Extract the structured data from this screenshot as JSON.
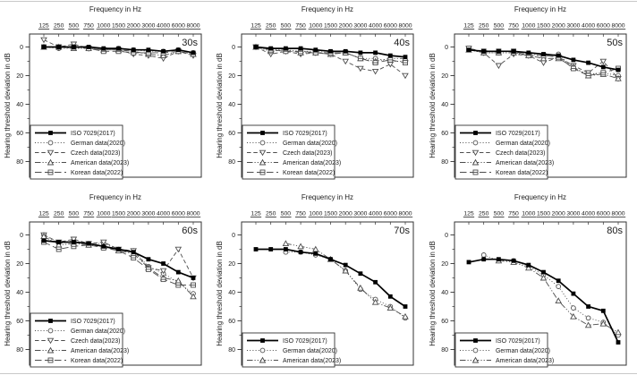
{
  "figure": {
    "background": "#ffffff",
    "edge_line_color": "#c8c8c8",
    "frame_color": "#333333",
    "iso_color": "#000000",
    "other_color": "#4d4d4d"
  },
  "series_styles": {
    "ISO 7029(2017)": {
      "marker": "square-filled",
      "linestyle": "solid",
      "color": "#000000",
      "width": 1.7
    },
    "German data(2020)": {
      "marker": "circle-open",
      "linestyle": "dotted",
      "color": "#4d4d4d",
      "width": 0.9
    },
    "Czech data(2023)": {
      "marker": "triangle-down-open",
      "linestyle": "dashed",
      "color": "#4d4d4d",
      "width": 0.9
    },
    "American data(2023)": {
      "marker": "triangle-up-open",
      "linestyle": "dashdotdot",
      "color": "#4d4d4d",
      "width": 0.9
    },
    "Korean data(2022)": {
      "marker": "square-minus-open",
      "linestyle": "longdash",
      "color": "#4d4d4d",
      "width": 0.9
    }
  },
  "chart_data": [
    {
      "type": "line",
      "age_label": "30s",
      "title": "Frequency in Hz",
      "xlabel": "Frequency in Hz",
      "ylabel": "Hearing threshold deviation in dB",
      "categories": [
        "125",
        "250",
        "500",
        "750",
        "1000",
        "1500",
        "2000",
        "3000",
        "4000",
        "6000",
        "8000"
      ],
      "ylim": [
        -9,
        91
      ],
      "yticks": [
        0,
        20,
        40,
        60,
        80
      ],
      "yminorticks": [
        10,
        30,
        50,
        70
      ],
      "y_inverted": true,
      "grid": false,
      "legend_position": "bottom-left",
      "series": [
        {
          "name": "ISO 7029(2017)",
          "values": [
            0,
            0,
            0,
            0,
            1,
            1,
            2,
            2,
            3,
            2,
            4
          ]
        },
        {
          "name": "German data(2020)",
          "values": [
            0,
            1,
            1,
            1,
            2,
            1,
            2,
            3,
            3,
            2,
            4
          ]
        },
        {
          "name": "Czech data(2023)",
          "values": [
            -5,
            0,
            -2,
            1,
            2,
            2,
            5,
            6,
            8,
            3,
            6
          ]
        },
        {
          "name": "American data(2023)",
          "values": [
            0,
            0,
            1,
            1,
            2,
            2,
            3,
            5,
            6,
            3,
            5
          ]
        },
        {
          "name": "Korean data(2022)",
          "values": [
            0,
            0,
            0,
            1,
            3,
            3,
            4,
            4,
            4,
            3,
            5
          ]
        }
      ]
    },
    {
      "type": "line",
      "age_label": "40s",
      "title": "Frequency in Hz",
      "xlabel": "Frequency in Hz",
      "ylabel": "Hearing threshold deviation in dB",
      "categories": [
        "125",
        "250",
        "500",
        "750",
        "1000",
        "1500",
        "2000",
        "3000",
        "4000",
        "6000",
        "8000"
      ],
      "ylim": [
        -9,
        91
      ],
      "yticks": [
        0,
        20,
        40,
        60,
        80
      ],
      "yminorticks": [
        10,
        30,
        50,
        70
      ],
      "y_inverted": true,
      "grid": false,
      "legend_position": "bottom-left",
      "series": [
        {
          "name": "ISO 7029(2017)",
          "values": [
            0,
            1,
            1,
            1,
            2,
            3,
            3,
            4,
            4,
            6,
            7
          ]
        },
        {
          "name": "German data(2020)",
          "values": [
            0,
            2,
            2,
            3,
            3,
            4,
            4,
            8,
            8,
            10,
            10
          ]
        },
        {
          "name": "Czech data(2023)",
          "values": [
            0,
            5,
            3,
            5,
            4,
            5,
            10,
            15,
            17,
            12,
            20
          ]
        },
        {
          "name": "American data(2023)",
          "values": [
            0,
            3,
            2,
            4,
            4,
            5,
            4,
            8,
            10,
            8,
            8
          ]
        },
        {
          "name": "Korean data(2022)",
          "values": [
            0,
            2,
            3,
            3,
            4,
            4,
            4,
            8,
            11,
            9,
            11
          ]
        }
      ]
    },
    {
      "type": "line",
      "age_label": "50s",
      "title": "Frequency in Hz",
      "xlabel": "Frequency in Hz",
      "ylabel": "Hearing threshold deviation in dB",
      "categories": [
        "125",
        "250",
        "500",
        "750",
        "1000",
        "1500",
        "2000",
        "3000",
        "4000",
        "6000",
        "8000"
      ],
      "ylim": [
        -9,
        91
      ],
      "yticks": [
        0,
        20,
        40,
        60,
        80
      ],
      "yminorticks": [
        10,
        30,
        50,
        70
      ],
      "y_inverted": true,
      "grid": false,
      "legend_position": "bottom-left",
      "series": [
        {
          "name": "ISO 7029(2017)",
          "values": [
            2,
            3,
            3,
            3,
            4,
            5,
            6,
            9,
            11,
            14,
            16
          ]
        },
        {
          "name": "German data(2020)",
          "values": [
            2,
            4,
            4,
            4,
            5,
            6,
            5,
            15,
            19,
            18,
            20
          ]
        },
        {
          "name": "Czech data(2023)",
          "values": [
            1,
            4,
            13,
            5,
            6,
            11,
            7,
            13,
            18,
            10,
            22
          ]
        },
        {
          "name": "American data(2023)",
          "values": [
            2,
            4,
            4,
            4,
            6,
            8,
            8,
            14,
            20,
            19,
            22
          ]
        },
        {
          "name": "Korean data(2022)",
          "values": [
            1,
            3,
            3,
            3,
            6,
            6,
            7,
            15,
            20,
            18,
            15
          ]
        }
      ]
    },
    {
      "type": "line",
      "age_label": "60s",
      "title": "Frequency in Hz",
      "xlabel": "Frequency in Hz",
      "ylabel": "Hearing threshold deviation in dB",
      "categories": [
        "125",
        "250",
        "500",
        "750",
        "1000",
        "1500",
        "2000",
        "3000",
        "4000",
        "6000",
        "8000"
      ],
      "ylim": [
        -9,
        91
      ],
      "yticks": [
        0,
        20,
        40,
        60,
        80
      ],
      "yminorticks": [
        10,
        30,
        50,
        70
      ],
      "y_inverted": true,
      "grid": false,
      "legend_position": "bottom-left",
      "series": [
        {
          "name": "ISO 7029(2017)",
          "values": [
            4,
            5,
            5,
            6,
            8,
            10,
            12,
            17,
            20,
            26,
            30
          ]
        },
        {
          "name": "German data(2020)",
          "values": [
            0,
            6,
            4,
            6,
            6,
            10,
            11,
            22,
            27,
            33,
            41
          ]
        },
        {
          "name": "Czech data(2023)",
          "values": [
            0,
            5,
            3,
            6,
            5,
            10,
            11,
            23,
            25,
            10,
            30
          ]
        },
        {
          "name": "American data(2023)",
          "values": [
            1,
            7,
            6,
            7,
            8,
            11,
            13,
            23,
            30,
            32,
            43
          ]
        },
        {
          "name": "Korean data(2022)",
          "values": [
            5,
            10,
            8,
            7,
            9,
            11,
            16,
            24,
            31,
            35,
            35
          ]
        }
      ]
    },
    {
      "type": "line",
      "age_label": "70s",
      "title": "Frequency in Hz",
      "xlabel": "Frequency in Hz",
      "ylabel": "Hearing threshold deviation in dB",
      "categories": [
        "125",
        "250",
        "500",
        "750",
        "1000",
        "1500",
        "2000",
        "3000",
        "4000",
        "6000",
        "8000"
      ],
      "ylim": [
        -9,
        91
      ],
      "yticks": [
        0,
        20,
        40,
        60,
        80
      ],
      "yminorticks": [
        10,
        30,
        50,
        70
      ],
      "y_inverted": true,
      "grid": false,
      "legend_position": "bottom-left",
      "series": [
        {
          "name": "ISO 7029(2017)",
          "values": [
            10,
            10,
            10,
            12,
            13,
            17,
            21,
            27,
            33,
            43,
            50
          ]
        },
        {
          "name": "German data(2020)",
          "values": [
            null,
            null,
            12,
            12,
            14,
            17,
            25,
            38,
            45,
            50,
            58
          ]
        },
        {
          "name": "American data(2023)",
          "values": [
            null,
            null,
            6,
            8,
            10,
            17,
            25,
            37,
            47,
            51,
            57
          ]
        }
      ]
    },
    {
      "type": "line",
      "age_label": "80s",
      "title": "Frequency in Hz",
      "xlabel": "Frequency in Hz",
      "ylabel": "Hearing threshold deviation in dB",
      "categories": [
        "125",
        "250",
        "500",
        "750",
        "1000",
        "1500",
        "2000",
        "3000",
        "4000",
        "6000",
        "8000"
      ],
      "ylim": [
        -9,
        91
      ],
      "yticks": [
        0,
        20,
        40,
        60,
        80
      ],
      "yminorticks": [
        10,
        30,
        50,
        70
      ],
      "y_inverted": true,
      "grid": false,
      "legend_position": "bottom-left",
      "series": [
        {
          "name": "ISO 7029(2017)",
          "values": [
            19,
            17,
            17,
            18,
            21,
            26,
            32,
            41,
            50,
            53,
            75
          ]
        },
        {
          "name": "German data(2020)",
          "values": [
            null,
            14,
            18,
            18,
            22,
            28,
            36,
            51,
            58,
            61,
            70
          ]
        },
        {
          "name": "American data(2023)",
          "values": [
            null,
            null,
            18,
            19,
            23,
            30,
            46,
            57,
            63,
            62,
            68
          ]
        }
      ]
    }
  ]
}
